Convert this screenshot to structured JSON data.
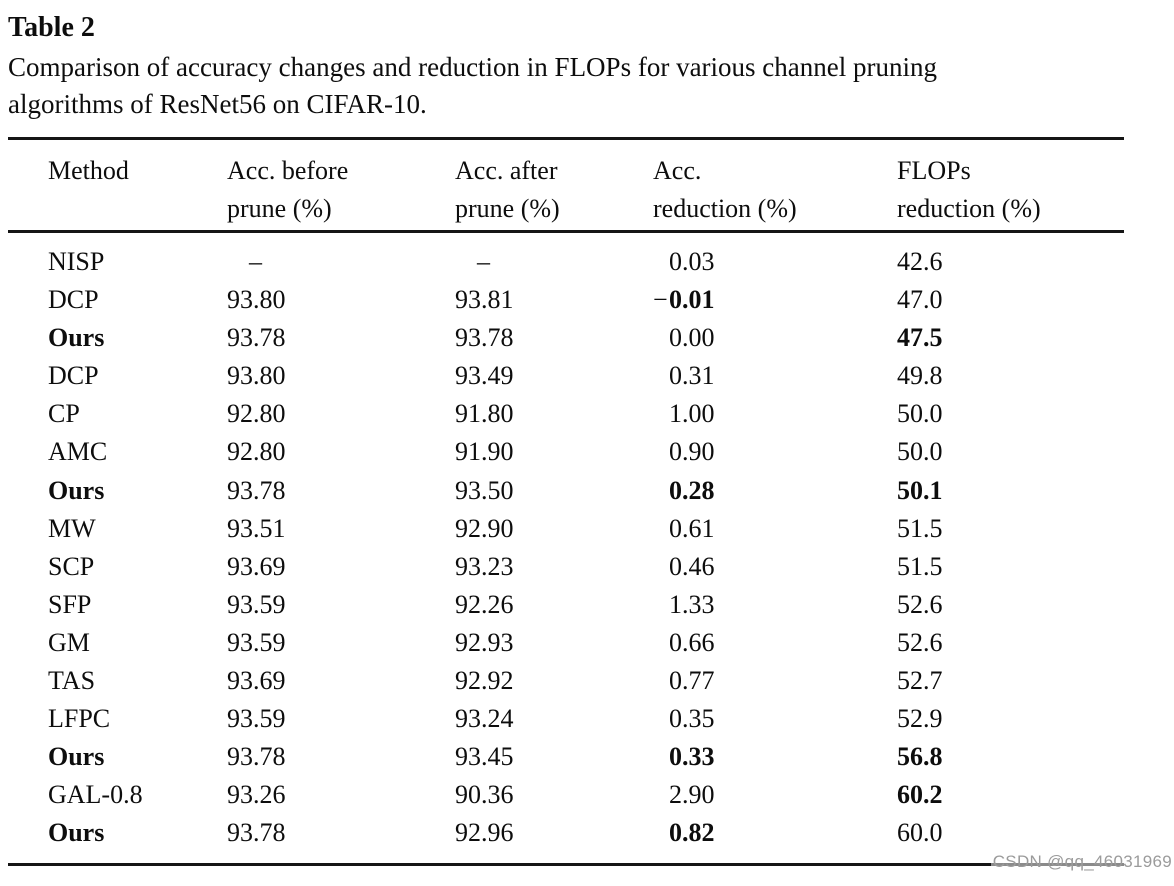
{
  "title": "Table 2",
  "caption_lines": [
    "Comparison of accuracy changes and reduction in FLOPs for various channel pruning",
    "algorithms of ResNet56 on CIFAR-10."
  ],
  "watermark": "CSDN @qq_46031969",
  "colors": {
    "text": "#0d0d0d",
    "rule": "#151515",
    "watermark": "#9b9b9b",
    "background": "#ffffff"
  },
  "table": {
    "headers": [
      {
        "line1": "Method",
        "line2": ""
      },
      {
        "line1": "Acc. before",
        "line2": "prune (%)"
      },
      {
        "line1": "Acc. after",
        "line2": "prune (%)"
      },
      {
        "line1": "Acc.",
        "line2": "reduction (%)"
      },
      {
        "line1": "FLOPs",
        "line2": "reduction (%)"
      }
    ],
    "rows": [
      {
        "method": "NISP",
        "method_bold": false,
        "acc_before": "–",
        "acc_after": "–",
        "acc_red_prefix": "",
        "acc_red": "0.03",
        "acc_red_bold": false,
        "flops_red": "42.6",
        "flops_red_bold": false
      },
      {
        "method": "DCP",
        "method_bold": false,
        "acc_before": "93.80",
        "acc_after": "93.81",
        "acc_red_prefix": "−",
        "acc_red": "0.01",
        "acc_red_bold": true,
        "flops_red": "47.0",
        "flops_red_bold": false
      },
      {
        "method": "Ours",
        "method_bold": true,
        "acc_before": "93.78",
        "acc_after": "93.78",
        "acc_red_prefix": "",
        "acc_red": "0.00",
        "acc_red_bold": false,
        "flops_red": "47.5",
        "flops_red_bold": true
      },
      {
        "method": "DCP",
        "method_bold": false,
        "acc_before": "93.80",
        "acc_after": "93.49",
        "acc_red_prefix": "",
        "acc_red": "0.31",
        "acc_red_bold": false,
        "flops_red": "49.8",
        "flops_red_bold": false
      },
      {
        "method": "CP",
        "method_bold": false,
        "acc_before": "92.80",
        "acc_after": "91.80",
        "acc_red_prefix": "",
        "acc_red": "1.00",
        "acc_red_bold": false,
        "flops_red": "50.0",
        "flops_red_bold": false
      },
      {
        "method": "AMC",
        "method_bold": false,
        "acc_before": "92.80",
        "acc_after": "91.90",
        "acc_red_prefix": "",
        "acc_red": "0.90",
        "acc_red_bold": false,
        "flops_red": "50.0",
        "flops_red_bold": false
      },
      {
        "method": "Ours",
        "method_bold": true,
        "acc_before": "93.78",
        "acc_after": "93.50",
        "acc_red_prefix": "",
        "acc_red": "0.28",
        "acc_red_bold": true,
        "flops_red": "50.1",
        "flops_red_bold": true
      },
      {
        "method": "MW",
        "method_bold": false,
        "acc_before": "93.51",
        "acc_after": "92.90",
        "acc_red_prefix": "",
        "acc_red": "0.61",
        "acc_red_bold": false,
        "flops_red": "51.5",
        "flops_red_bold": false
      },
      {
        "method": "SCP",
        "method_bold": false,
        "acc_before": "93.69",
        "acc_after": "93.23",
        "acc_red_prefix": "",
        "acc_red": "0.46",
        "acc_red_bold": false,
        "flops_red": "51.5",
        "flops_red_bold": false
      },
      {
        "method": "SFP",
        "method_bold": false,
        "acc_before": "93.59",
        "acc_after": "92.26",
        "acc_red_prefix": "",
        "acc_red": "1.33",
        "acc_red_bold": false,
        "flops_red": "52.6",
        "flops_red_bold": false
      },
      {
        "method": "GM",
        "method_bold": false,
        "acc_before": "93.59",
        "acc_after": "92.93",
        "acc_red_prefix": "",
        "acc_red": "0.66",
        "acc_red_bold": false,
        "flops_red": "52.6",
        "flops_red_bold": false
      },
      {
        "method": "TAS",
        "method_bold": false,
        "acc_before": "93.69",
        "acc_after": "92.92",
        "acc_red_prefix": "",
        "acc_red": "0.77",
        "acc_red_bold": false,
        "flops_red": "52.7",
        "flops_red_bold": false
      },
      {
        "method": "LFPC",
        "method_bold": false,
        "acc_before": "93.59",
        "acc_after": "93.24",
        "acc_red_prefix": "",
        "acc_red": "0.35",
        "acc_red_bold": false,
        "flops_red": "52.9",
        "flops_red_bold": false
      },
      {
        "method": "Ours",
        "method_bold": true,
        "acc_before": "93.78",
        "acc_after": "93.45",
        "acc_red_prefix": "",
        "acc_red": "0.33",
        "acc_red_bold": true,
        "flops_red": "56.8",
        "flops_red_bold": true
      },
      {
        "method": "GAL-0.8",
        "method_bold": false,
        "acc_before": "93.26",
        "acc_after": "90.36",
        "acc_red_prefix": "",
        "acc_red": "2.90",
        "acc_red_bold": false,
        "flops_red": "60.2",
        "flops_red_bold": true
      },
      {
        "method": "Ours",
        "method_bold": true,
        "acc_before": "93.78",
        "acc_after": "92.96",
        "acc_red_prefix": "",
        "acc_red": "0.82",
        "acc_red_bold": true,
        "flops_red": "60.0",
        "flops_red_bold": false
      }
    ]
  }
}
